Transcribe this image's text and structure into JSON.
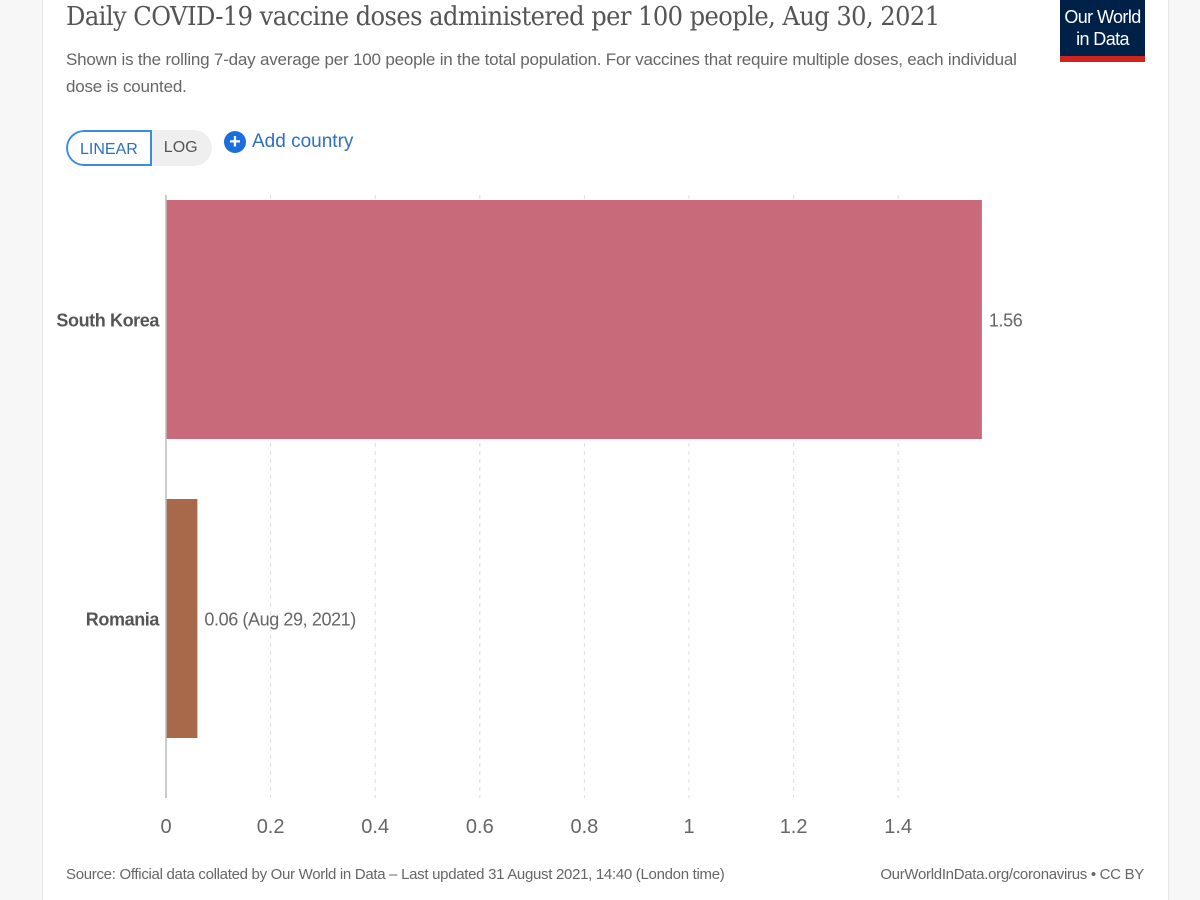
{
  "header": {
    "title": "Daily COVID-19 vaccine doses administered per 100 people, Aug 30, 2021",
    "subtitle": "Shown is the rolling 7-day average per 100 people in the total population. For vaccines that require multiple doses, each individual dose is counted.",
    "logo_line1": "Our World",
    "logo_line2": "in Data"
  },
  "controls": {
    "scale_options": [
      "LINEAR",
      "LOG"
    ],
    "selected_scale": "LINEAR",
    "add_country_label": "Add country",
    "add_icon": "plus-circle-icon"
  },
  "colors": {
    "logo_bg": "#002147",
    "logo_accent": "#ce261e",
    "accent_blue": "#2e6fbf"
  },
  "chart_data": {
    "type": "bar",
    "orientation": "horizontal",
    "title": "Daily COVID-19 vaccine doses administered per 100 people, Aug 30, 2021",
    "categories": [
      "South Korea",
      "Romania"
    ],
    "values": [
      1.56,
      0.06
    ],
    "value_labels": [
      "1.56",
      "0.06 (Aug 29, 2021)"
    ],
    "colors": [
      "#c96a7a",
      "#a8694a"
    ],
    "xlim": [
      0,
      1.56
    ],
    "xticks": [
      0,
      0.2,
      0.4,
      0.6,
      0.8,
      1,
      1.2,
      1.4
    ],
    "xtick_labels": [
      "0",
      "0.2",
      "0.4",
      "0.6",
      "0.8",
      "1",
      "1.2",
      "1.4"
    ],
    "grid": "vertical dashed",
    "xlabel": "",
    "ylabel": ""
  },
  "footer": {
    "source": "Source: Official data collated by Our World in Data – Last updated 31 August 2021, 14:40 (London time)",
    "link": "OurWorldInData.org/coronavirus • CC BY"
  }
}
